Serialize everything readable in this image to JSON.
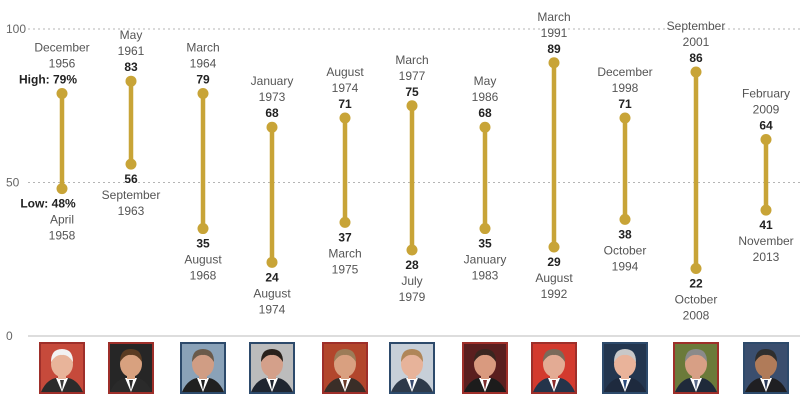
{
  "chart_data": {
    "type": "range",
    "title": "",
    "ylim": [
      0,
      100
    ],
    "yticks": [
      0,
      50,
      100
    ],
    "grid": true,
    "accent_color": "#c8a437",
    "high_prefix": "High:",
    "low_prefix": "Low:",
    "value_suffix": "%",
    "series": [
      {
        "name": "president-1",
        "high": 79,
        "high_date": [
          "December",
          "1956"
        ],
        "low": 48,
        "low_date": [
          "April",
          "1958"
        ],
        "prefixed": true
      },
      {
        "name": "president-2",
        "high": 83,
        "high_date": [
          "May",
          "1961"
        ],
        "low": 56,
        "low_date": [
          "September",
          "1963"
        ]
      },
      {
        "name": "president-3",
        "high": 79,
        "high_date": [
          "March",
          "1964"
        ],
        "low": 35,
        "low_date": [
          "August",
          "1968"
        ]
      },
      {
        "name": "president-4",
        "high": 68,
        "high_date": [
          "January",
          "1973"
        ],
        "low": 24,
        "low_date": [
          "August",
          "1974"
        ]
      },
      {
        "name": "president-5",
        "high": 71,
        "high_date": [
          "August",
          "1974"
        ],
        "low": 37,
        "low_date": [
          "March",
          "1975"
        ]
      },
      {
        "name": "president-6",
        "high": 75,
        "high_date": [
          "March",
          "1977"
        ],
        "low": 28,
        "low_date": [
          "July",
          "1979"
        ]
      },
      {
        "name": "president-7",
        "high": 68,
        "high_date": [
          "May",
          "1986"
        ],
        "low": 35,
        "low_date": [
          "January",
          "1983"
        ]
      },
      {
        "name": "president-8",
        "high": 89,
        "high_date": [
          "March",
          "1991"
        ],
        "low": 29,
        "low_date": [
          "August",
          "1992"
        ]
      },
      {
        "name": "president-9",
        "high": 71,
        "high_date": [
          "December",
          "1998"
        ],
        "low": 38,
        "low_date": [
          "October",
          "1994"
        ]
      },
      {
        "name": "president-10",
        "high": 86,
        "high_date": [
          "September",
          "2001"
        ],
        "low": 22,
        "low_date": [
          "October",
          "2008"
        ]
      },
      {
        "name": "president-11",
        "high": 64,
        "high_date": [
          "February",
          "2009"
        ],
        "low": 41,
        "low_date": [
          "November",
          "2013"
        ]
      }
    ]
  },
  "portraits": [
    {
      "frame_color": "#9e2f2a",
      "face": "#e8b49a",
      "hair": "#f2f2f2",
      "suit": "#2b2b2b",
      "shirt": "#ffffff",
      "tie": "#3a3a3a",
      "bg": "#c64a3b"
    },
    {
      "frame_color": "#9e2f2a",
      "face": "#d8a17f",
      "hair": "#5a3b22",
      "suit": "#2a2a2a",
      "shirt": "#ffffff",
      "tie": "#2a2a2a",
      "bg": "#262626"
    },
    {
      "frame_color": "#2d4a6b",
      "face": "#d09d84",
      "hair": "#6a5a4a",
      "suit": "#202020",
      "shirt": "#ffffff",
      "tie": "#1f1f1f",
      "bg": "#8aa2b8"
    },
    {
      "frame_color": "#2d4a6b",
      "face": "#d4a08a",
      "hair": "#2a211b",
      "suit": "#1f2530",
      "shirt": "#ffffff",
      "tie": "#1f2530",
      "bg": "#bcbcbc"
    },
    {
      "frame_color": "#9e2f2a",
      "face": "#d9a080",
      "hair": "#9c7c58",
      "suit": "#3a2e28",
      "shirt": "#ffffff",
      "tie": "#6a3a28",
      "bg": "#b2462c"
    },
    {
      "frame_color": "#2d4a6b",
      "face": "#e7b39a",
      "hair": "#b08658",
      "suit": "#2e3a4a",
      "shirt": "#ffffff",
      "tie": "#3a4c70",
      "bg": "#c7cfd8"
    },
    {
      "frame_color": "#9e2f2a",
      "face": "#d99a7f",
      "hair": "#3a2620",
      "suit": "#1c1c1c",
      "shirt": "#ffffff",
      "tie": "#7a2a2a",
      "bg": "#5a1f1f"
    },
    {
      "frame_color": "#9e2f2a",
      "face": "#e3ab94",
      "hair": "#7a6a5a",
      "suit": "#24344a",
      "shirt": "#ffffff",
      "tie": "#8a2a2a",
      "bg": "#d33a2e"
    },
    {
      "frame_color": "#2d4a6b",
      "face": "#e9b39a",
      "hair": "#c8c8c8",
      "suit": "#1e2a3e",
      "shirt": "#ffffff",
      "tie": "#2a4a7a",
      "bg": "#23364f"
    },
    {
      "frame_color": "#9e2f2a",
      "face": "#d79f85",
      "hair": "#8a8a8a",
      "suit": "#1f2a3a",
      "shirt": "#ffffff",
      "tie": "#5a6a8a",
      "bg": "#6b7a3a"
    },
    {
      "frame_color": "#2d4a6b",
      "face": "#b07b59",
      "hair": "#2e2e2e",
      "suit": "#1f1f22",
      "shirt": "#ffffff",
      "tie": "#2a3a5a",
      "bg": "#3a4e6e"
    }
  ]
}
